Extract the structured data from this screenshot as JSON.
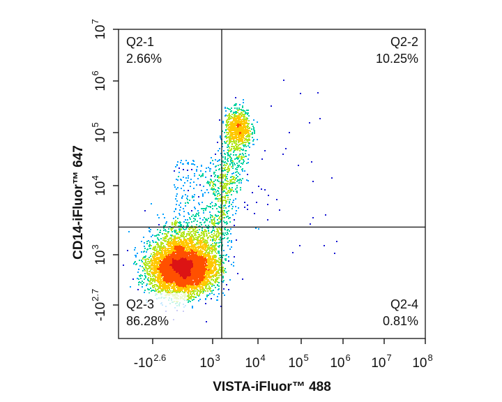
{
  "chart_data": {
    "type": "scatter",
    "subtype": "flow-cytometry-density-dot-plot",
    "title": "",
    "xlabel": "VISTA-iFluor™ 488",
    "ylabel": "CD14-iFluor™ 647",
    "x_scale": "biexponential",
    "y_scale": "biexponential",
    "x_ticks": [
      {
        "base": "-10",
        "exp": "2.6",
        "value": -398
      },
      {
        "base": "10",
        "exp": "3",
        "value": 1000
      },
      {
        "base": "10",
        "exp": "4",
        "value": 10000
      },
      {
        "base": "10",
        "exp": "5",
        "value": 100000
      },
      {
        "base": "10",
        "exp": "6",
        "value": 1000000
      },
      {
        "base": "10",
        "exp": "7",
        "value": 10000000
      },
      {
        "base": "10",
        "exp": "8",
        "value": 100000000
      }
    ],
    "y_ticks": [
      {
        "base": "-10",
        "exp": "2.7",
        "value": -501
      },
      {
        "base": "10",
        "exp": "3",
        "value": 1000
      },
      {
        "base": "10",
        "exp": "4",
        "value": 10000
      },
      {
        "base": "10",
        "exp": "5",
        "value": 100000
      },
      {
        "base": "10",
        "exp": "6",
        "value": 1000000
      },
      {
        "base": "10",
        "exp": "7",
        "value": 10000000
      }
    ],
    "gates": {
      "x_threshold_log10": 3.2,
      "y_threshold_log10": 3.4
    },
    "quadrants": [
      {
        "name": "Q2-1",
        "percent": "2.66%",
        "corner": "top-left"
      },
      {
        "name": "Q2-2",
        "percent": "10.25%",
        "corner": "top-right"
      },
      {
        "name": "Q2-3",
        "percent": "86.28%",
        "corner": "bottom-left"
      },
      {
        "name": "Q2-4",
        "percent": "0.81%",
        "corner": "bottom-right"
      }
    ],
    "populations": [
      {
        "name": "main",
        "center_log10": [
          2.45,
          2.75
        ],
        "spread_log10": [
          0.28,
          0.28
        ],
        "share": 0.84
      },
      {
        "name": "upper-cluster",
        "center_log10": [
          3.55,
          5.1
        ],
        "spread_log10": [
          0.14,
          0.18
        ],
        "share": 0.08
      }
    ],
    "density_colors": [
      "#1414d2",
      "#00a0ff",
      "#00d2a0",
      "#b4e61e",
      "#ffc800",
      "#ff5000",
      "#dc1414"
    ],
    "grid": false
  }
}
